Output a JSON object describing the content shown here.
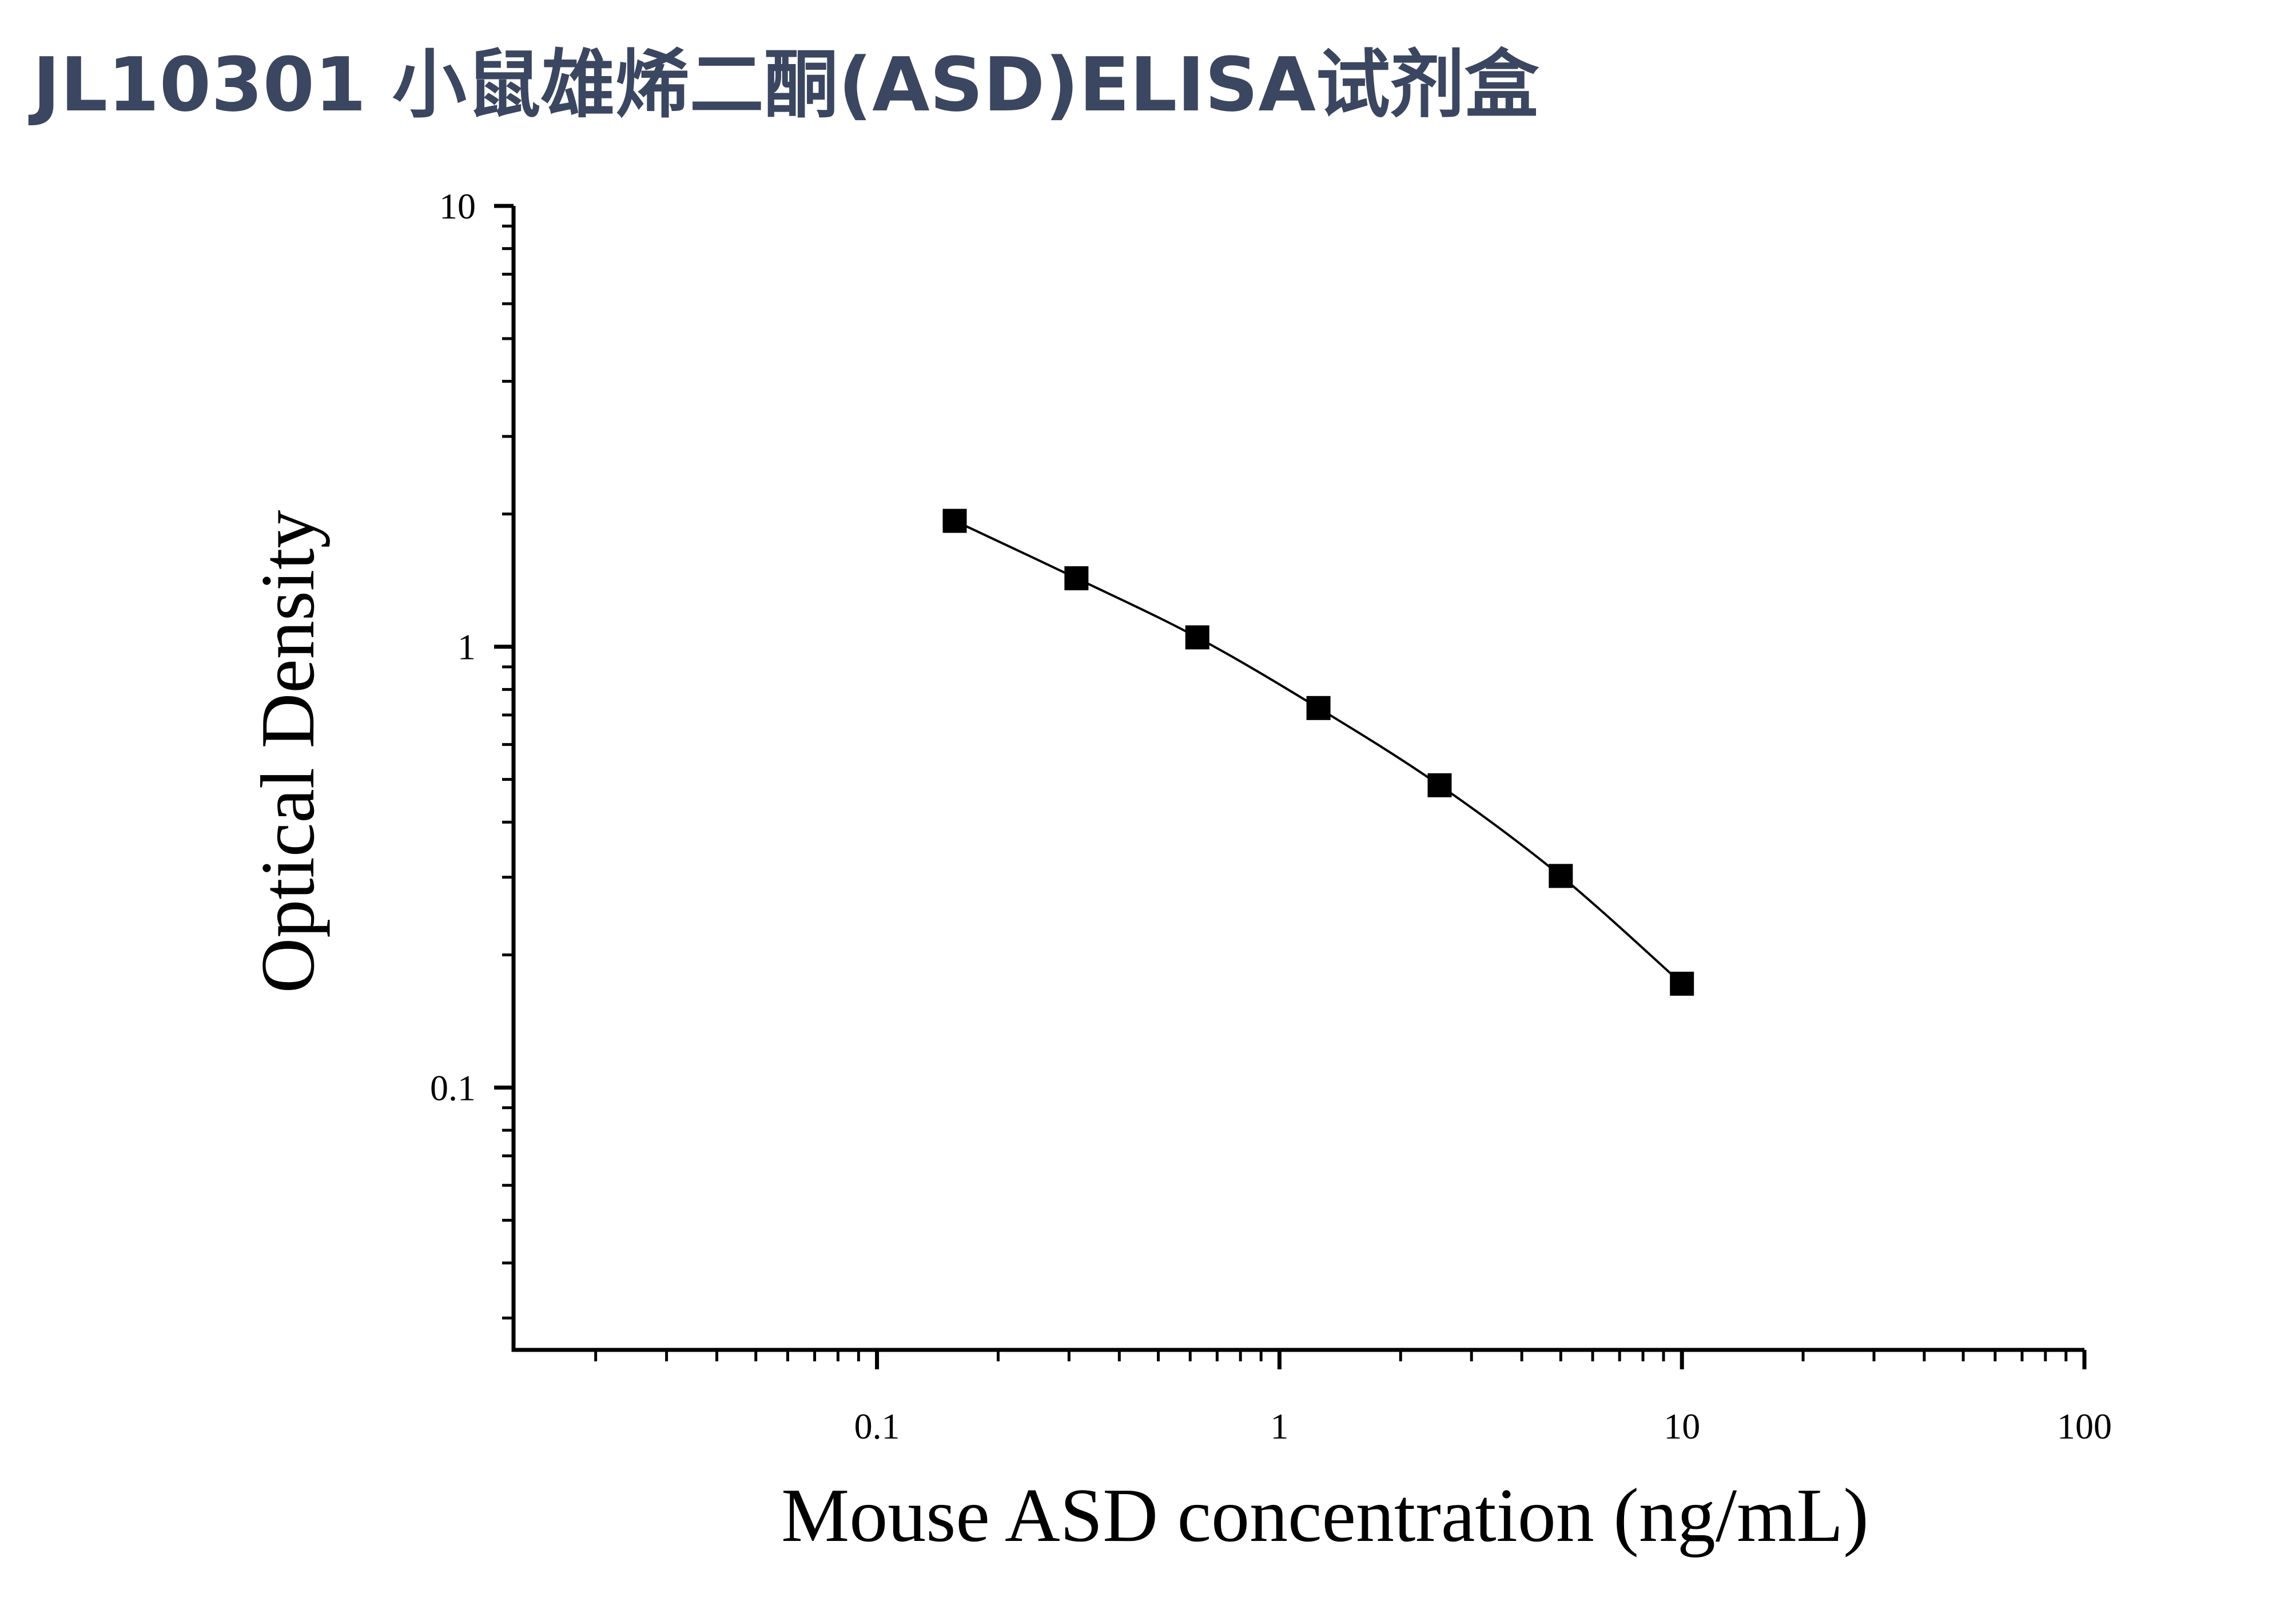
{
  "chart_data": {
    "type": "line",
    "title": "JL10301 小鼠雄烯二酮(ASD)ELISA试剂盒",
    "x_label": "Mouse ASD concentration (ng/mL)",
    "y_label": "Optical Density",
    "x": [
      0.156,
      0.313,
      0.625,
      1.25,
      2.5,
      5,
      10
    ],
    "series": [
      {
        "color": "#000000",
        "values": [
          1.93,
          1.43,
          1.05,
          0.726,
          0.485,
          0.302,
          0.172
        ]
      }
    ],
    "xlim": [
      0.0125,
      100
    ],
    "ylim": [
      0.0254,
      10
    ],
    "xticks": [
      0.1,
      1,
      10,
      100
    ],
    "yticks": [
      0.1,
      1,
      10
    ],
    "xscale": "log",
    "yscale": "log",
    "minor_ticks": true
  }
}
